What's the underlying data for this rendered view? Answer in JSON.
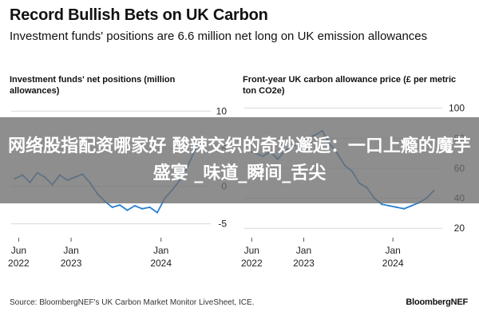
{
  "header": {
    "title": "Record Bullish Bets on UK Carbon",
    "subtitle": "Investment funds' positions are 6.6 million net long on UK emission allowances"
  },
  "chart_data": [
    {
      "type": "line",
      "title": "Investment funds' net positions (million allowances)",
      "x_ticks": [
        "Jun 2022",
        "Jan 2023",
        "Jan 2024"
      ],
      "y_ticks": [
        10,
        5,
        0,
        -5
      ],
      "ylim": [
        -6,
        11
      ],
      "grid": true,
      "color": "#2a7fd4",
      "series": [
        {
          "x": [
            "2022-05",
            "2022-06",
            "2022-07",
            "2022-08",
            "2022-09",
            "2022-10",
            "2022-11",
            "2022-12",
            "2023-01",
            "2023-02",
            "2023-03",
            "2023-04",
            "2023-05",
            "2023-06",
            "2023-07",
            "2023-08",
            "2023-09",
            "2023-10",
            "2023-11",
            "2023-12",
            "2024-01",
            "2024-02",
            "2024-03",
            "2024-04",
            "2024-05",
            "2024-06"
          ],
          "values": [
            1.0,
            1.5,
            0.5,
            1.8,
            1.2,
            0.2,
            1.5,
            0.8,
            1.2,
            1.6,
            0.5,
            -1.0,
            -2.0,
            -2.8,
            -2.5,
            -3.2,
            -2.6,
            -3.0,
            -2.8,
            -3.5,
            -1.6,
            -0.5,
            0.8,
            2.5,
            4.8,
            6.6
          ]
        }
      ]
    },
    {
      "type": "line",
      "title": "Front-year UK carbon allowance price (£ per metric ton CO2e)",
      "x_ticks": [
        "Jun 2022",
        "Jan 2023",
        "Jan 2024"
      ],
      "y_ticks": [
        100,
        80,
        60,
        40,
        20
      ],
      "ylim": [
        18,
        103
      ],
      "grid": true,
      "color": "#2a7fd4",
      "series": [
        {
          "x": [
            "2022-05",
            "2022-06",
            "2022-07",
            "2022-08",
            "2022-09",
            "2022-10",
            "2022-11",
            "2022-12",
            "2023-01",
            "2023-02",
            "2023-03",
            "2023-04",
            "2023-05",
            "2023-06",
            "2023-07",
            "2023-08",
            "2023-09",
            "2023-10",
            "2023-11",
            "2023-12",
            "2024-01",
            "2024-02",
            "2024-03",
            "2024-04",
            "2024-05",
            "2024-06"
          ],
          "values": [
            72,
            70,
            68,
            71,
            66,
            72,
            74,
            78,
            80,
            82,
            85,
            76,
            70,
            62,
            58,
            50,
            47,
            40,
            36,
            35,
            34,
            33,
            35,
            37,
            40,
            45
          ]
        }
      ]
    }
  ],
  "footer": {
    "source": "Source: BloombergNEF's UK Carbon Market Monitor LiveSheet, ICE.",
    "brand": "BloombergNEF"
  },
  "overlay": {
    "text": "网络股指配资哪家好 酸辣交织的奇妙邂逅：一口上瘾的魔芋盛宴 _味道_瞬间_舌尖"
  }
}
